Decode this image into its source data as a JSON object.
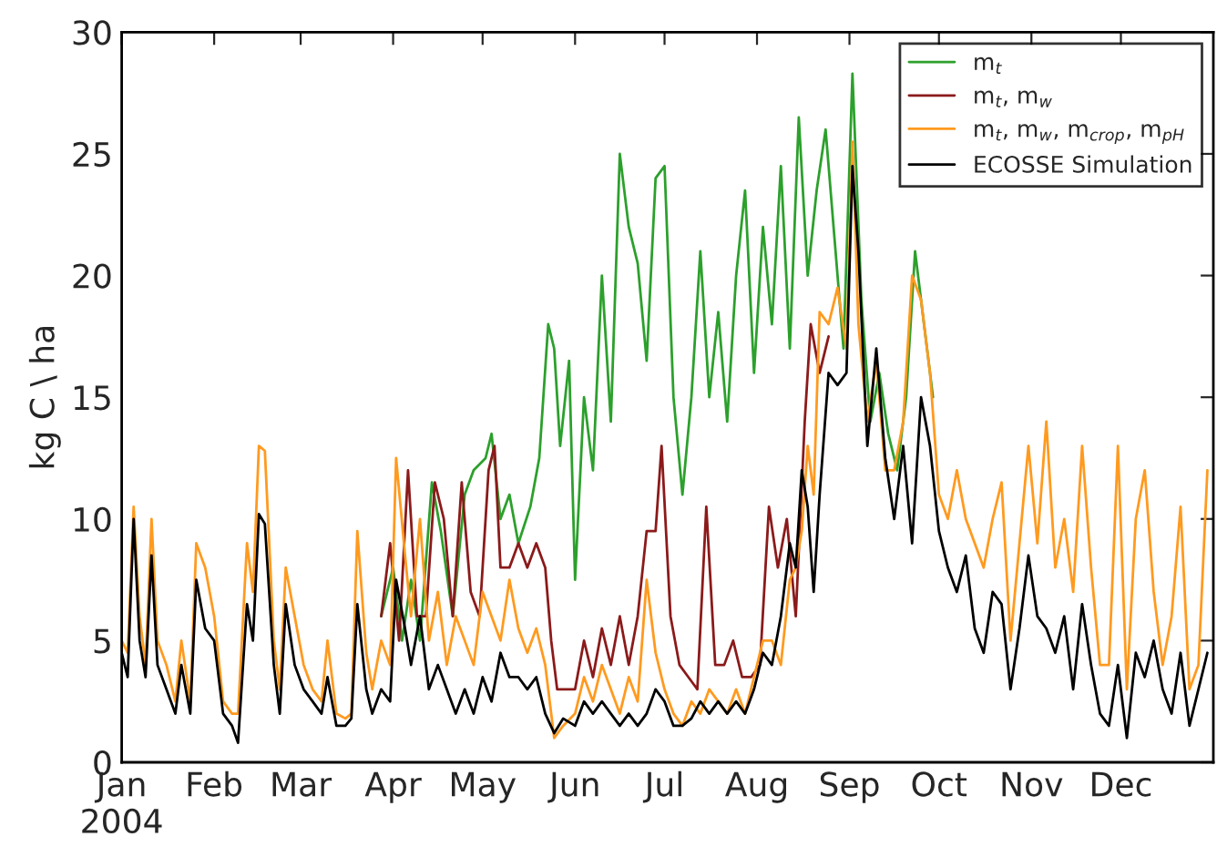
{
  "chart_data": {
    "type": "line",
    "ylabel": "kg C \\ ha",
    "x": [
      "2004-01-01",
      "2004-01-03",
      "2004-01-05",
      "2004-01-07",
      "2004-01-09",
      "2004-01-11",
      "2004-01-13",
      "2004-01-16",
      "2004-01-19",
      "2004-01-21",
      "2004-01-24",
      "2004-01-26",
      "2004-01-29",
      "2004-02-01",
      "2004-02-04",
      "2004-02-07",
      "2004-02-09",
      "2004-02-12",
      "2004-02-14",
      "2004-02-16",
      "2004-02-18",
      "2004-02-21",
      "2004-02-23",
      "2004-02-25",
      "2004-02-28",
      "2004-03-02",
      "2004-03-05",
      "2004-03-08",
      "2004-03-10",
      "2004-03-13",
      "2004-03-16",
      "2004-03-18",
      "2004-03-20",
      "2004-03-23",
      "2004-03-25",
      "2004-03-28",
      "2004-03-31",
      "2004-04-02",
      "2004-04-05",
      "2004-04-07",
      "2004-04-10",
      "2004-04-13",
      "2004-04-16",
      "2004-04-19",
      "2004-04-22",
      "2004-04-25",
      "2004-04-28",
      "2004-05-01",
      "2004-05-04",
      "2004-05-07",
      "2004-05-10",
      "2004-05-13",
      "2004-05-16",
      "2004-05-19",
      "2004-05-22",
      "2004-05-25",
      "2004-05-28",
      "2004-06-01",
      "2004-06-04",
      "2004-06-07",
      "2004-06-10",
      "2004-06-13",
      "2004-06-16",
      "2004-06-19",
      "2004-06-22",
      "2004-06-25",
      "2004-06-28",
      "2004-07-01",
      "2004-07-04",
      "2004-07-07",
      "2004-07-10",
      "2004-07-13",
      "2004-07-16",
      "2004-07-19",
      "2004-07-22",
      "2004-07-25",
      "2004-07-28",
      "2004-07-31",
      "2004-08-03",
      "2004-08-06",
      "2004-08-09",
      "2004-08-12",
      "2004-08-14",
      "2004-08-16",
      "2004-08-18",
      "2004-08-20",
      "2004-08-22",
      "2004-08-25",
      "2004-08-28",
      "2004-08-31",
      "2004-09-02",
      "2004-09-04",
      "2004-09-07",
      "2004-09-10",
      "2004-09-13",
      "2004-09-16",
      "2004-09-19",
      "2004-09-22",
      "2004-09-25",
      "2004-09-28",
      "2004-10-01",
      "2004-10-04",
      "2004-10-07",
      "2004-10-10",
      "2004-10-13",
      "2004-10-16",
      "2004-10-19",
      "2004-10-22",
      "2004-10-25",
      "2004-10-28",
      "2004-10-31",
      "2004-11-03",
      "2004-11-06",
      "2004-11-09",
      "2004-11-12",
      "2004-11-15",
      "2004-11-18",
      "2004-11-21",
      "2004-11-24",
      "2004-11-27",
      "2004-11-30",
      "2004-12-03",
      "2004-12-06",
      "2004-12-09",
      "2004-12-12",
      "2004-12-15",
      "2004-12-18",
      "2004-12-21",
      "2004-12-24",
      "2004-12-27",
      "2004-12-30"
    ],
    "series": [
      {
        "name": "m$_{t}$",
        "color": "#2ca02c",
        "x": [
          "2004-03-28",
          "2004-04-01",
          "2004-04-04",
          "2004-04-07",
          "2004-04-10",
          "2004-04-14",
          "2004-04-17",
          "2004-04-21",
          "2004-04-25",
          "2004-04-28",
          "2004-05-02",
          "2004-05-04",
          "2004-05-07",
          "2004-05-10",
          "2004-05-13",
          "2004-05-17",
          "2004-05-20",
          "2004-05-23",
          "2004-05-25",
          "2004-05-27",
          "2004-05-30",
          "2004-06-01",
          "2004-06-04",
          "2004-06-07",
          "2004-06-10",
          "2004-06-13",
          "2004-06-16",
          "2004-06-19",
          "2004-06-22",
          "2004-06-25",
          "2004-06-28",
          "2004-07-01",
          "2004-07-04",
          "2004-07-07",
          "2004-07-10",
          "2004-07-13",
          "2004-07-16",
          "2004-07-19",
          "2004-07-22",
          "2004-07-25",
          "2004-07-28",
          "2004-07-31",
          "2004-08-03",
          "2004-08-06",
          "2004-08-09",
          "2004-08-12",
          "2004-08-15",
          "2004-08-18",
          "2004-08-21",
          "2004-08-24",
          "2004-08-27",
          "2004-08-30",
          "2004-09-02",
          "2004-09-05",
          "2004-09-08",
          "2004-09-11",
          "2004-09-14",
          "2004-09-17",
          "2004-09-20",
          "2004-09-23",
          "2004-09-26",
          "2004-09-29"
        ],
        "values": [
          6,
          8,
          5,
          7.5,
          5,
          11.5,
          9.5,
          6,
          11,
          12,
          12.5,
          13.5,
          10,
          11,
          9,
          10.5,
          12.5,
          18,
          17,
          13,
          16.5,
          7.5,
          15,
          12,
          20,
          14,
          25,
          22,
          20.5,
          16.5,
          24,
          24.5,
          15,
          11,
          15,
          21,
          15,
          18.5,
          14,
          20,
          23.5,
          16,
          22,
          18,
          24.5,
          17,
          26.5,
          20,
          23.5,
          26,
          21.5,
          17,
          28.3,
          19,
          14,
          16,
          13.5,
          12,
          15,
          21,
          null,
          15
        ]
      },
      {
        "name": "m$_{t}$, m$_{w}$",
        "color": "#8b1a1a",
        "x": [
          "2004-03-28",
          "2004-03-31",
          "2004-04-03",
          "2004-04-06",
          "2004-04-09",
          "2004-04-12",
          "2004-04-15",
          "2004-04-18",
          "2004-04-21",
          "2004-04-24",
          "2004-04-27",
          "2004-04-30",
          "2004-05-03",
          "2004-05-05",
          "2004-05-07",
          "2004-05-10",
          "2004-05-13",
          "2004-05-16",
          "2004-05-19",
          "2004-05-22",
          "2004-05-24",
          "2004-05-26",
          "2004-06-01",
          "2004-06-04",
          "2004-06-07",
          "2004-06-10",
          "2004-06-13",
          "2004-06-16",
          "2004-06-19",
          "2004-06-22",
          "2004-06-25",
          "2004-06-28",
          "2004-06-30",
          "2004-07-03",
          "2004-07-06",
          "2004-07-09",
          "2004-07-12",
          "2004-07-15",
          "2004-07-18",
          "2004-07-21",
          "2004-07-24",
          "2004-07-27",
          "2004-07-30",
          "2004-08-02",
          "2004-08-05",
          "2004-08-08",
          "2004-08-11",
          "2004-08-14",
          "2004-08-17",
          "2004-08-19",
          "2004-08-22",
          "2004-08-25"
        ],
        "values": [
          6,
          9,
          5,
          12,
          6,
          6,
          11.5,
          10,
          6,
          11.5,
          7,
          6,
          12,
          13,
          8,
          8,
          9,
          8,
          9,
          8,
          5,
          3,
          3,
          5,
          3.5,
          5.5,
          4,
          6,
          4,
          6,
          9.5,
          9.5,
          13,
          6,
          4,
          3.5,
          3,
          10.5,
          4,
          4,
          5,
          3.5,
          3.5,
          4,
          10.5,
          8,
          10,
          6,
          14,
          18,
          16,
          17.5
        ]
      },
      {
        "name": "m$_{t}$, m$_{w}$, m$_{crop}$, m$_{pH}$",
        "color": "#ff9a1f",
        "values": [
          5,
          4.5,
          10.5,
          6,
          4,
          10,
          5,
          4,
          2.5,
          5,
          2.5,
          9,
          8,
          6,
          2.5,
          2,
          2,
          9,
          7,
          13,
          12.8,
          5,
          3,
          8,
          6,
          4,
          3,
          2.5,
          5,
          2,
          1.8,
          2,
          9.5,
          4.5,
          3,
          5,
          4,
          12.5,
          8.5,
          6,
          10,
          5,
          7,
          4,
          6,
          5,
          4,
          7,
          6,
          5,
          7.5,
          5.5,
          4.5,
          5.5,
          4,
          1,
          1.5,
          2,
          3.5,
          2.5,
          4,
          3,
          2,
          3.5,
          2.5,
          7.5,
          4.5,
          3,
          2,
          1.5,
          2.5,
          2,
          3,
          2.5,
          2,
          3,
          2,
          3.5,
          5,
          5,
          4,
          7.5,
          8,
          9.5,
          13,
          11,
          18.5,
          18,
          19.5,
          17,
          25.5,
          18,
          14,
          16.5,
          12,
          12,
          14,
          20,
          19,
          16,
          11,
          10,
          12,
          10,
          9,
          8,
          10,
          11.5,
          5,
          9,
          13,
          9,
          14,
          8,
          10,
          7,
          13,
          8,
          4,
          4,
          13,
          3,
          10,
          12,
          7,
          4,
          6,
          10.5,
          3,
          4,
          12
        ]
      },
      {
        "name": "ECOSSE Simulation",
        "color": "#000000",
        "values": [
          4.5,
          3.5,
          10,
          5,
          3.5,
          8.5,
          4,
          3,
          2,
          4,
          2,
          7.5,
          5.5,
          5,
          2,
          1.5,
          0.8,
          6.5,
          5,
          10.2,
          9.8,
          4,
          2,
          6.5,
          4,
          3,
          2.5,
          2,
          3.5,
          1.5,
          1.5,
          1.8,
          6.5,
          3,
          2,
          3,
          2.5,
          7.5,
          5.5,
          4,
          6,
          3,
          4,
          3,
          2,
          3,
          2,
          3.5,
          2.5,
          4.5,
          3.5,
          3.5,
          3,
          3.5,
          2,
          1.2,
          1.8,
          1.5,
          2.5,
          2,
          2.5,
          2,
          1.5,
          2,
          1.5,
          2,
          3,
          2.5,
          1.5,
          1.5,
          1.8,
          2.5,
          2,
          2.5,
          2,
          2.5,
          2,
          3,
          4.5,
          4,
          6,
          9,
          8,
          12,
          10.5,
          7,
          11,
          16,
          15.5,
          16,
          24.5,
          21,
          13,
          17,
          12.5,
          10,
          13,
          9,
          15,
          13,
          9.5,
          8,
          7,
          8.5,
          5.5,
          4.5,
          7,
          6.5,
          3,
          5.5,
          8.5,
          6,
          5.5,
          4.5,
          6,
          3,
          6.5,
          4,
          2,
          1.5,
          4,
          1,
          4.5,
          3.5,
          5,
          3,
          2,
          4.5,
          1.5,
          3,
          4.5
        ]
      }
    ],
    "xlim": [
      "2004-01-01",
      "2005-01-01"
    ],
    "xticks": [
      {
        "value": "2004-01-01",
        "label": "Jan\n2004"
      },
      {
        "value": "2004-02-01",
        "label": "Feb"
      },
      {
        "value": "2004-03-01",
        "label": "Mar"
      },
      {
        "value": "2004-04-01",
        "label": "Apr"
      },
      {
        "value": "2004-05-01",
        "label": "May"
      },
      {
        "value": "2004-06-01",
        "label": "Jun"
      },
      {
        "value": "2004-07-01",
        "label": "Jul"
      },
      {
        "value": "2004-08-01",
        "label": "Aug"
      },
      {
        "value": "2004-09-01",
        "label": "Sep"
      },
      {
        "value": "2004-10-01",
        "label": "Oct"
      },
      {
        "value": "2004-11-01",
        "label": "Nov"
      },
      {
        "value": "2004-12-01",
        "label": "Dec"
      }
    ],
    "ylim": [
      0,
      30
    ],
    "yticks": [
      0,
      5,
      10,
      15,
      20,
      25,
      30
    ],
    "legend": "top right",
    "grid": false
  }
}
